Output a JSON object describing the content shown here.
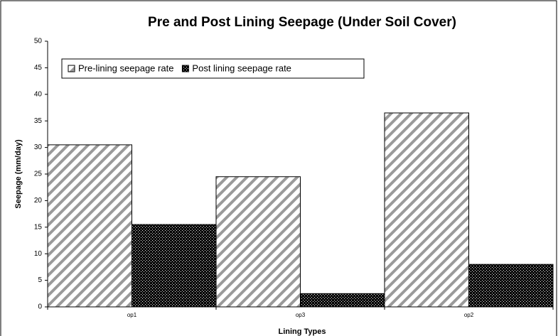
{
  "chart_data": {
    "type": "bar",
    "title": "Pre and Post Lining Seepage (Under Soil Cover)",
    "x_label": "Lining Types",
    "y_label": "Seepage (mm/day)",
    "categories": [
      "op1",
      "op3",
      "op2"
    ],
    "series": [
      {
        "name": "Pre-lining seepage rate",
        "color": "#9a9a9a",
        "values": [
          30.5,
          24.5,
          36.5
        ]
      },
      {
        "name": "Post lining seepage rate",
        "color": "#000000",
        "values": [
          15.5,
          2.5,
          8
        ]
      }
    ],
    "ylim": [
      0,
      50
    ],
    "yticks": [
      0,
      5,
      10,
      15,
      20,
      25,
      30,
      35,
      40,
      45,
      50
    ],
    "grid": false,
    "legend": "top-left"
  }
}
